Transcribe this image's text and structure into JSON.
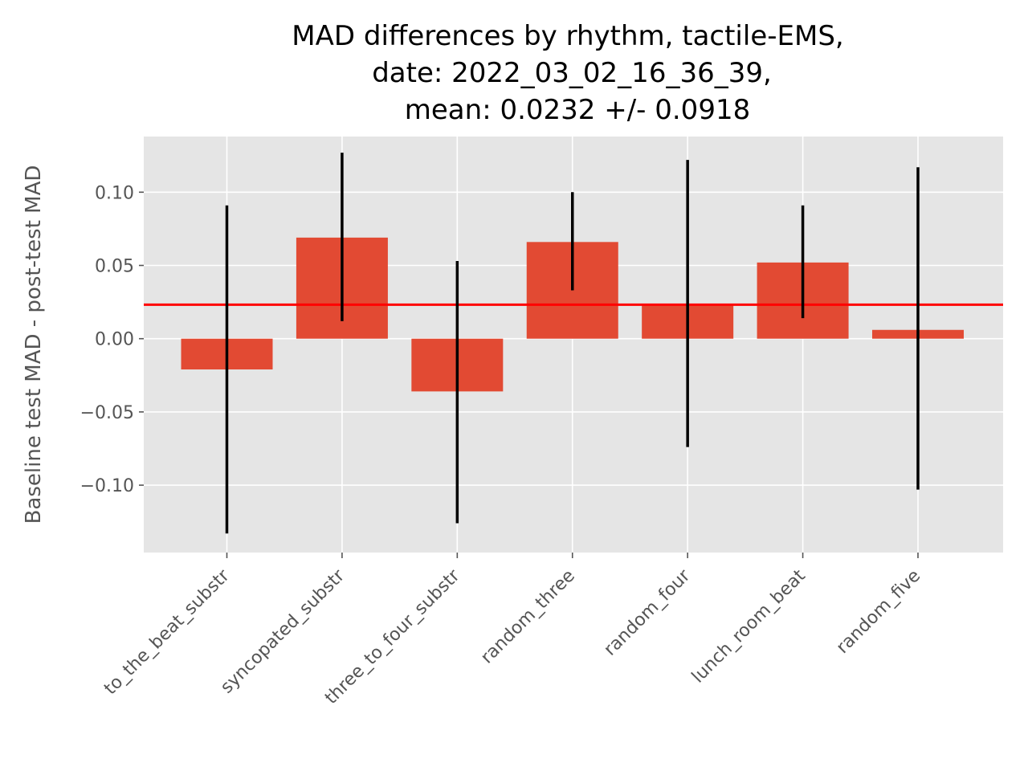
{
  "chart_data": {
    "type": "bar",
    "title_lines": [
      "MAD differences by rhythm, tactile-EMS,",
      "date: 2022_03_02_16_36_39,",
      "mean: 0.0232 +/- 0.0918"
    ],
    "xlabel": "",
    "ylabel": "Baseline test MAD - post-test MAD",
    "categories": [
      "to_the_beat_substr",
      "syncopated_substr",
      "three_to_four_substr",
      "random_three",
      "random_four",
      "lunch_room_beat",
      "random_five"
    ],
    "values": [
      -0.021,
      0.069,
      -0.036,
      0.066,
      0.023,
      0.052,
      0.006
    ],
    "error_low": [
      -0.133,
      0.012,
      -0.126,
      0.033,
      -0.074,
      0.014,
      -0.103
    ],
    "error_high": [
      0.091,
      0.127,
      0.053,
      0.1,
      0.122,
      0.091,
      0.117
    ],
    "mean_line": 0.0232,
    "ylim": [
      -0.146,
      0.138
    ],
    "yticks": [
      -0.1,
      -0.05,
      0.0,
      0.05,
      0.1
    ],
    "ytick_labels": [
      "−0.10",
      "−0.05",
      "0.00",
      "0.05",
      "0.10"
    ],
    "grid": true,
    "colors": {
      "bar": "#E24A33",
      "error_bar": "#000000",
      "mean_line": "#FF0000",
      "plot_bg": "#E5E5E5",
      "grid": "#FFFFFF"
    }
  }
}
